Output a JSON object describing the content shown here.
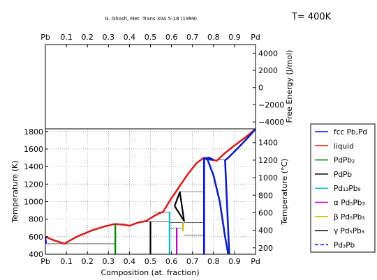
{
  "title": "G. Ghosh, Met. Trans 30A 5-18 (1999)",
  "temperature_label": "T= 400K",
  "chart_data": [
    {
      "type": "line",
      "name": "free-energy",
      "ylabel": "Free Energy (J/mol)",
      "xlim": [
        0,
        1
      ],
      "ylim": [
        -4800,
        5000
      ],
      "x_ticks": [
        "Pb",
        "0.1",
        "0.2",
        "0.3",
        "0.4",
        "0.5",
        "0.6",
        "0.7",
        "0.8",
        "0.9",
        "Pd"
      ],
      "y_ticks": [
        4000,
        2000,
        0,
        -2000,
        -4000
      ],
      "y_tick_labels": [
        "4000",
        "2000",
        "0",
        "−2000",
        "−4000"
      ],
      "series": []
    },
    {
      "type": "line",
      "name": "phase-diagram",
      "xlabel": "Composition (at. fraction)",
      "ylabel": "Temperature (K)",
      "ylabel_right": "Temperature (°C)",
      "xlim": [
        0,
        1
      ],
      "ylim": [
        400,
        1830
      ],
      "x_ticks": [
        "Pb",
        "0.1",
        "0.2",
        "0.3",
        "0.4",
        "0.5",
        "0.6",
        "0.7",
        "0.8",
        "0.9",
        "Pd"
      ],
      "y_ticks_left": [
        400,
        600,
        800,
        1000,
        1200,
        1400,
        1600,
        1800
      ],
      "y_ticks_right_C": [
        200,
        400,
        600,
        800,
        1000,
        1200,
        1400
      ],
      "legend_position": "outside-right",
      "legend": [
        {
          "label": "fcc Pb,Pd",
          "color": "#0000ff",
          "style": "solid"
        },
        {
          "label": "liquid",
          "color": "#ff0000",
          "style": "solid"
        },
        {
          "label": "PdPb₂",
          "color": "#008000",
          "style": "solid"
        },
        {
          "label": "PdPb",
          "color": "#000000",
          "style": "solid"
        },
        {
          "label": "Pd₁₃Pb₉",
          "color": "#00bfbf",
          "style": "solid"
        },
        {
          "label": "α Pd₅Pb₃",
          "color": "#bf00bf",
          "style": "solid"
        },
        {
          "label": "β Pd₅Pb₃",
          "color": "#bfbf00",
          "style": "solid"
        },
        {
          "label": "γ Pd₅Pb₃",
          "color": "#000000",
          "style": "solid"
        },
        {
          "label": "Pd₃Pb",
          "color": "#0000ff",
          "style": "dashed"
        }
      ],
      "series": [
        {
          "name": "liquid",
          "color": "#d62020",
          "width": 2.6,
          "points": [
            [
              0,
              600
            ],
            [
              0.04,
              560
            ],
            [
              0.09,
              520
            ],
            [
              0.15,
              600
            ],
            [
              0.22,
              670
            ],
            [
              0.28,
              715
            ],
            [
              0.33,
              745
            ],
            [
              0.38,
              735
            ],
            [
              0.4,
              725
            ],
            [
              0.44,
              760
            ],
            [
              0.48,
              780
            ],
            [
              0.52,
              840
            ],
            [
              0.56,
              885
            ],
            [
              0.6,
              1040
            ],
            [
              0.615,
              1090
            ],
            [
              0.64,
              1180
            ],
            [
              0.68,
              1320
            ],
            [
              0.72,
              1440
            ],
            [
              0.75,
              1495
            ],
            [
              0.78,
              1500
            ],
            [
              0.8,
              1475
            ],
            [
              0.815,
              1465
            ],
            [
              0.85,
              1545
            ],
            [
              0.9,
              1640
            ],
            [
              0.95,
              1730
            ],
            [
              1.0,
              1828
            ]
          ]
        },
        {
          "name": "fcc-pb-solidus",
          "color": "#0000ff",
          "width": 1.5,
          "points": [
            [
              0,
              600
            ],
            [
              0.003,
              560
            ],
            [
              0.005,
              520
            ]
          ]
        },
        {
          "name": "fcc-left-boundary",
          "color": "#1020c0",
          "width": 2.6,
          "points": [
            [
              0.755,
              400
            ],
            [
              0.755,
              1495
            ],
            [
              0.78,
              1500
            ],
            [
              0.8,
              1475
            ]
          ]
        },
        {
          "name": "fcc-pd3pb",
          "color": "#1020c0",
          "width": 2.6,
          "points": [
            [
              0.8,
              1475
            ],
            [
              0.785,
              1480
            ],
            [
              0.76,
              1495
            ]
          ]
        },
        {
          "name": "fcc-right-left",
          "color": "#1020c0",
          "width": 2.6,
          "points": [
            [
              0.875,
              400
            ],
            [
              0.855,
              1470
            ],
            [
              0.87,
              1500
            ],
            [
              0.92,
              1620
            ],
            [
              0.96,
              1720
            ],
            [
              1.0,
              1828
            ]
          ]
        },
        {
          "name": "fcc-middle",
          "color": "#1020c0",
          "width": 2.6,
          "points": [
            [
              0.77,
              1490
            ],
            [
              0.8,
              1300
            ],
            [
              0.83,
              1000
            ],
            [
              0.855,
              600
            ],
            [
              0.87,
              400
            ]
          ]
        },
        {
          "name": "pdpb2",
          "color": "#008000",
          "width": 2.2,
          "points": [
            [
              0.333,
              400
            ],
            [
              0.333,
              745
            ]
          ]
        },
        {
          "name": "pdpb",
          "color": "#000000",
          "width": 2.2,
          "points": [
            [
              0.5,
              400
            ],
            [
              0.5,
              770
            ]
          ]
        },
        {
          "name": "pd13pb9",
          "color": "#00bfbf",
          "width": 2.2,
          "points": [
            [
              0.591,
              400
            ],
            [
              0.591,
              880
            ]
          ]
        },
        {
          "name": "alpha-pd5pb3",
          "color": "#bf00bf",
          "width": 2.2,
          "points": [
            [
              0.625,
              400
            ],
            [
              0.625,
              700
            ]
          ]
        },
        {
          "name": "beta-pd5pb3",
          "color": "#bfbf00",
          "width": 2.2,
          "points": [
            [
              0.655,
              660
            ],
            [
              0.655,
              760
            ]
          ]
        },
        {
          "name": "gamma-pd5pb3",
          "color": "#000000",
          "width": 2.2,
          "points": [
            [
              0.615,
              950
            ],
            [
              0.64,
              1110
            ],
            [
              0.66,
              780
            ],
            [
              0.615,
              950
            ]
          ]
        },
        {
          "name": "pd3pb",
          "color": "#0000ff",
          "width": 1.5,
          "points": [
            [
              0.755,
              400
            ],
            [
              0.755,
              1480
            ]
          ]
        }
      ],
      "isotherms": [
        {
          "y": 520,
          "x": [
            0.01,
            0.333
          ]
        },
        {
          "y": 745,
          "x": [
            0.333,
            0.38
          ]
        },
        {
          "y": 770,
          "x": [
            0.44,
            0.591
          ]
        },
        {
          "y": 880,
          "x": [
            0.52,
            0.591
          ]
        },
        {
          "y": 700,
          "x": [
            0.591,
            0.655
          ]
        },
        {
          "y": 760,
          "x": [
            0.591,
            0.655
          ]
        },
        {
          "y": 760,
          "x": [
            0.66,
            0.755
          ]
        },
        {
          "y": 1110,
          "x": [
            0.64,
            0.755
          ]
        },
        {
          "y": 620,
          "x": [
            0.66,
            0.755
          ]
        },
        {
          "y": 1475,
          "x": [
            0.755,
            0.855
          ]
        }
      ]
    }
  ]
}
